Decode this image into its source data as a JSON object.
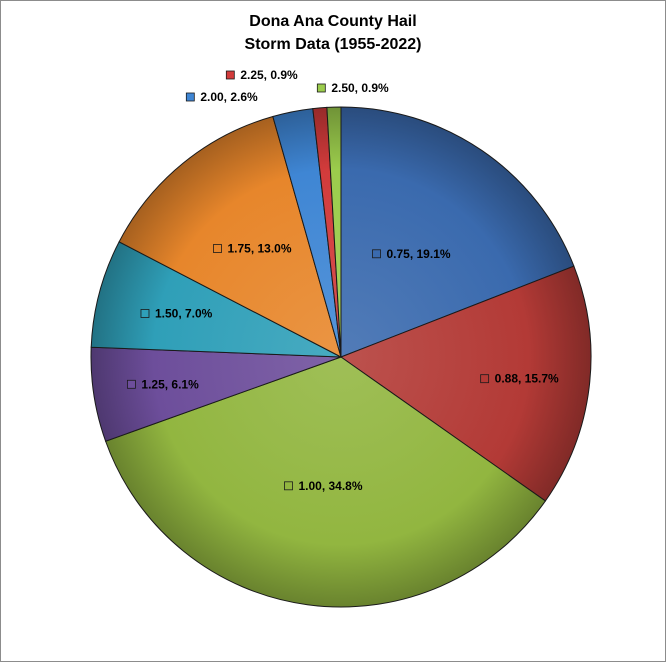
{
  "chart_data": {
    "type": "pie",
    "title_lines": [
      "Dona Ana County Hail",
      "Storm Data (1955-2022)"
    ],
    "slices": [
      {
        "category": "0.75",
        "percent": 19.1,
        "label": "0.75, 19.1%",
        "color": "#3a6aae"
      },
      {
        "category": "0.88",
        "percent": 15.7,
        "label": "0.88, 15.7%",
        "color": "#b33a36"
      },
      {
        "category": "1.00",
        "percent": 34.8,
        "label": "1.00, 34.8%",
        "color": "#92b640"
      },
      {
        "category": "1.25",
        "percent": 6.1,
        "label": "1.25, 6.1%",
        "color": "#6d4e9b"
      },
      {
        "category": "1.50",
        "percent": 7.0,
        "label": "1.50, 7.0%",
        "color": "#2f9fb8"
      },
      {
        "category": "1.75",
        "percent": 13.0,
        "label": "1.75, 13.0%",
        "color": "#e7862b"
      },
      {
        "category": "2.00",
        "percent": 2.6,
        "label": "2.00, 2.6%",
        "color": "#3f86d4"
      },
      {
        "category": "2.25",
        "percent": 0.9,
        "label": "2.25, 0.9%",
        "color": "#d23b3b"
      },
      {
        "category": "2.50",
        "percent": 0.9,
        "label": "2.50, 0.9%",
        "color": "#9bcc4c"
      }
    ],
    "start_angle_deg": 0,
    "direction": "clockwise"
  }
}
